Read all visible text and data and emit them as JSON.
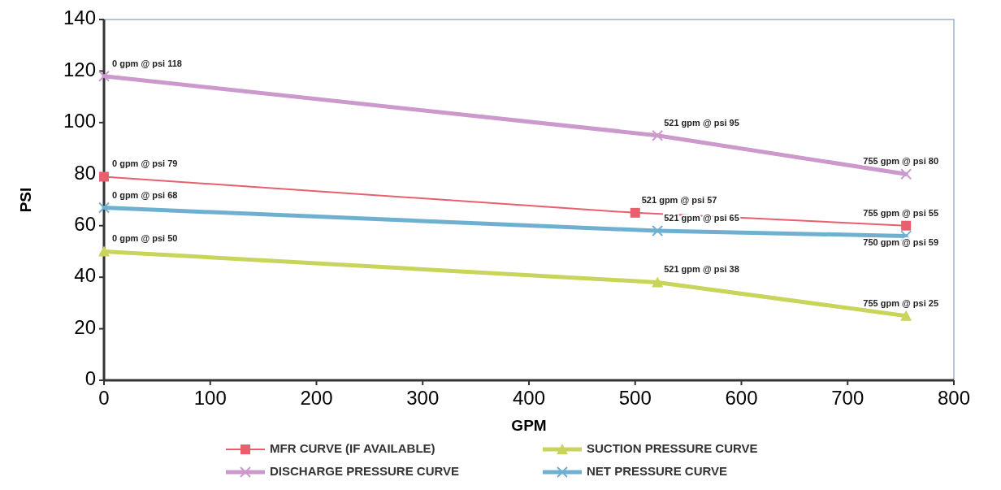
{
  "chart_data": {
    "type": "line",
    "xlabel": "GPM",
    "ylabel": "PSI",
    "xlim": [
      0,
      800
    ],
    "xticks": [
      0,
      100,
      200,
      300,
      400,
      500,
      600,
      700,
      800
    ],
    "ylim": [
      0,
      140
    ],
    "yticks": [
      0,
      20,
      40,
      60,
      80,
      100,
      120,
      140
    ],
    "grid": false,
    "legend": "bottom",
    "line_style": "solid",
    "series": [
      {
        "name": "MFR CURVE (IF AVAILABLE)",
        "color": "#e8606e",
        "marker": "square",
        "x": [
          0,
          500,
          755
        ],
        "values": [
          79,
          65,
          60
        ]
      },
      {
        "name": "SUCTION PRESSURE CURVE",
        "color": "#c8d45a",
        "marker": "triangle",
        "x": [
          0,
          521,
          755
        ],
        "values": [
          50,
          38,
          25
        ]
      },
      {
        "name": "DISCHARGE PRESSURE CURVE",
        "color": "#cc99cc",
        "marker": "cross",
        "x": [
          0,
          521,
          755
        ],
        "values": [
          118,
          95,
          80
        ]
      },
      {
        "name": "NET PRESSURE CURVE",
        "color": "#6fb0d0",
        "marker": "cross",
        "x": [
          0,
          521,
          755
        ],
        "values": [
          67,
          58,
          56
        ]
      }
    ],
    "annotations": [
      {
        "text": "0 gpm @ psi 118",
        "x": 0,
        "y": 118
      },
      {
        "text": "521 gpm @ psi 95",
        "x": 521,
        "y": 95
      },
      {
        "text": "755 gpm @ psi 80",
        "x": 755,
        "y": 80
      },
      {
        "text": "0 gpm @ psi 79",
        "x": 0,
        "y": 79
      },
      {
        "text": "0 gpm @ psi 68",
        "x": 0,
        "y": 67
      },
      {
        "text": "521 gpm @ psi 57",
        "x": 500,
        "y": 65
      },
      {
        "text": "521 gpm @ psi 65",
        "x": 521,
        "y": 58
      },
      {
        "text": "755 gpm @ psi 55",
        "x": 755,
        "y": 60
      },
      {
        "text": "750 gpm @ psi 59",
        "x": 755,
        "y": 56
      },
      {
        "text": "0 gpm @ psi 50",
        "x": 0,
        "y": 50
      },
      {
        "text": "521 gpm @ psi 38",
        "x": 521,
        "y": 38
      },
      {
        "text": "755 gpm @ psi 25",
        "x": 755,
        "y": 25
      }
    ]
  }
}
